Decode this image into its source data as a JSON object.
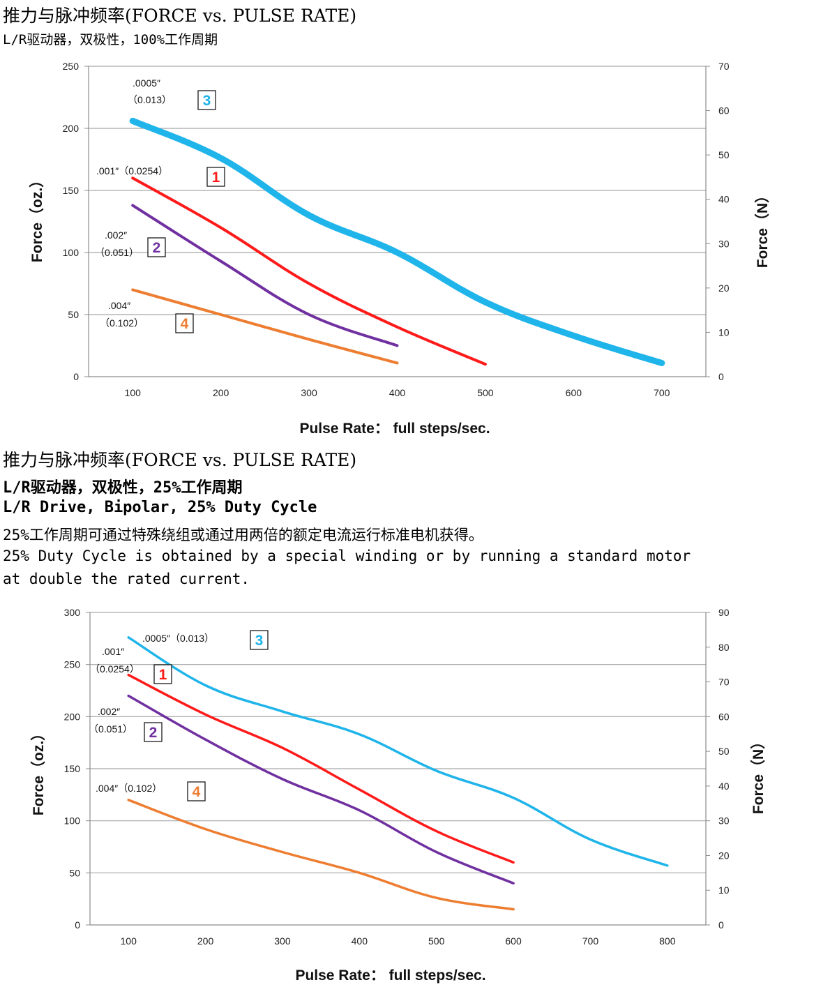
{
  "section1": {
    "title": "推力与脉冲频率(FORCE vs. PULSE RATE)",
    "subtitle": "L/R驱动器，双极性，100%工作周期"
  },
  "section2": {
    "title": "推力与脉冲频率(FORCE vs. PULSE RATE)",
    "subtitle_cn": "L/R驱动器，双极性，25%工作周期",
    "subtitle_en": "L/R Drive, Bipolar, 25% Duty Cycle",
    "note_cn": "25%工作周期可通过特殊绕组或通过用两倍的额定电流运行标准电机获得。",
    "note_en_line1": "25% Duty Cycle is obtained by a special winding or by running a standard motor",
    "note_en_line2": "at double the rated current."
  },
  "chart_data": [
    {
      "type": "line",
      "xlabel": "Pulse Rate：  full steps/sec.",
      "ylabel": "Force（oz.）",
      "y2label": "Force（N）",
      "xlim": [
        50,
        750
      ],
      "x_ticks": [
        100,
        200,
        300,
        400,
        500,
        600,
        700
      ],
      "ylim": [
        0,
        250
      ],
      "y_ticks": [
        0,
        50,
        100,
        150,
        200,
        250
      ],
      "y2lim": [
        0,
        70
      ],
      "y2_ticks": [
        0,
        10,
        20,
        30,
        40,
        50,
        60,
        70
      ],
      "grid": "horizontal",
      "series": [
        {
          "name": "1",
          "annotation": [
            ".001″（0.0254）"
          ],
          "color": "#ff1a1a",
          "x": [
            100,
            200,
            300,
            400,
            500
          ],
          "y": [
            160,
            120,
            75,
            40,
            10
          ]
        },
        {
          "name": "2",
          "annotation": [
            ".002″",
            "（0.051）"
          ],
          "color": "#7030a0",
          "x": [
            100,
            200,
            300,
            400
          ],
          "y": [
            138,
            93,
            50,
            25
          ]
        },
        {
          "name": "3",
          "annotation": [
            ".0005″",
            "（0.013）"
          ],
          "color": "#1fb4ea",
          "x": [
            100,
            200,
            300,
            400,
            500,
            600,
            700
          ],
          "y": [
            206,
            176,
            130,
            100,
            60,
            33,
            11
          ]
        },
        {
          "name": "4",
          "annotation": [
            ".004″",
            "（0.102）"
          ],
          "color": "#ed7d31",
          "x": [
            100,
            200,
            300,
            400
          ],
          "y": [
            70,
            50,
            30,
            11
          ]
        }
      ]
    },
    {
      "type": "line",
      "xlabel": "Pulse Rate：  full steps/sec.",
      "ylabel": "Force（oz.）",
      "y2label": "Force（N）",
      "xlim": [
        50,
        850
      ],
      "x_ticks": [
        100,
        200,
        300,
        400,
        500,
        600,
        700,
        800
      ],
      "ylim": [
        0,
        300
      ],
      "y_ticks": [
        0,
        50,
        100,
        150,
        200,
        250,
        300
      ],
      "y2lim": [
        0,
        90
      ],
      "y2_ticks": [
        0,
        10,
        20,
        30,
        40,
        50,
        60,
        70,
        80,
        90
      ],
      "grid": "horizontal",
      "series": [
        {
          "name": "1",
          "annotation": [
            ".001″",
            "（0.0254）"
          ],
          "color": "#ff1a1a",
          "x": [
            100,
            200,
            300,
            400,
            500,
            600
          ],
          "y": [
            240,
            202,
            170,
            130,
            90,
            60
          ]
        },
        {
          "name": "2",
          "annotation": [
            ".002″",
            "（0.051）"
          ],
          "color": "#7030a0",
          "x": [
            100,
            200,
            300,
            400,
            500,
            600
          ],
          "y": [
            220,
            178,
            140,
            110,
            70,
            40
          ]
        },
        {
          "name": "3",
          "annotation": [
            ".0005″（0.013）"
          ],
          "color": "#1fb4ea",
          "x": [
            100,
            200,
            300,
            400,
            500,
            600,
            700,
            800
          ],
          "y": [
            276,
            230,
            205,
            183,
            148,
            122,
            82,
            57
          ]
        },
        {
          "name": "4",
          "annotation": [
            ".004″（0.102）"
          ],
          "color": "#ed7d31",
          "x": [
            100,
            200,
            300,
            400,
            500,
            600
          ],
          "y": [
            120,
            92,
            70,
            50,
            26,
            15
          ]
        }
      ]
    }
  ]
}
